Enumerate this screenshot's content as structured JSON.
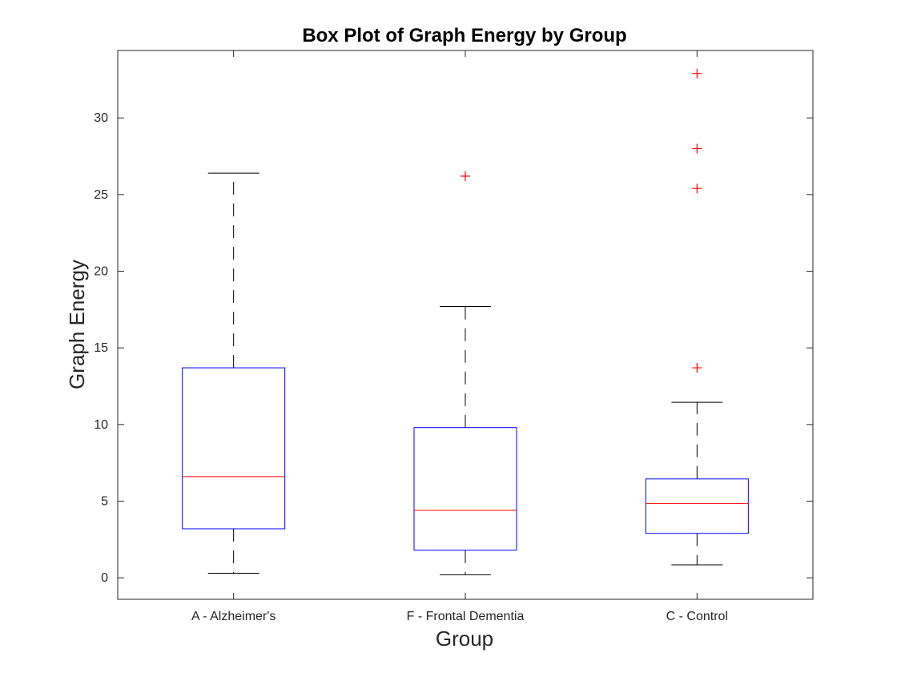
{
  "chart_data": {
    "type": "box",
    "title": "Box Plot of Graph Energy by Group",
    "xlabel": "Group",
    "ylabel": "Graph Energy",
    "ylim": [
      -1.4,
      34.4
    ],
    "yticks": [
      0,
      5,
      10,
      15,
      20,
      25,
      30
    ],
    "grid": false,
    "legend": "none",
    "categories": [
      "A - Alzheimer's",
      "F - Frontal Dementia",
      "C - Control"
    ],
    "boxes": [
      {
        "whisker_low": 0.3,
        "q1": 3.2,
        "median": 6.6,
        "q3": 13.7,
        "whisker_high": 26.4,
        "outliers": []
      },
      {
        "whisker_low": 0.2,
        "q1": 1.8,
        "median": 4.4,
        "q3": 9.8,
        "whisker_high": 17.7,
        "outliers": [
          26.2
        ]
      },
      {
        "whisker_low": 0.85,
        "q1": 2.9,
        "median": 4.85,
        "q3": 6.45,
        "whisker_high": 11.45,
        "outliers": [
          13.7,
          25.4,
          28.0,
          32.9
        ]
      }
    ],
    "colors": {
      "box": "#0000ff",
      "median": "#ff0000",
      "whisker": "#000000",
      "outlier": "#ff0000",
      "axes": "#262626"
    }
  }
}
